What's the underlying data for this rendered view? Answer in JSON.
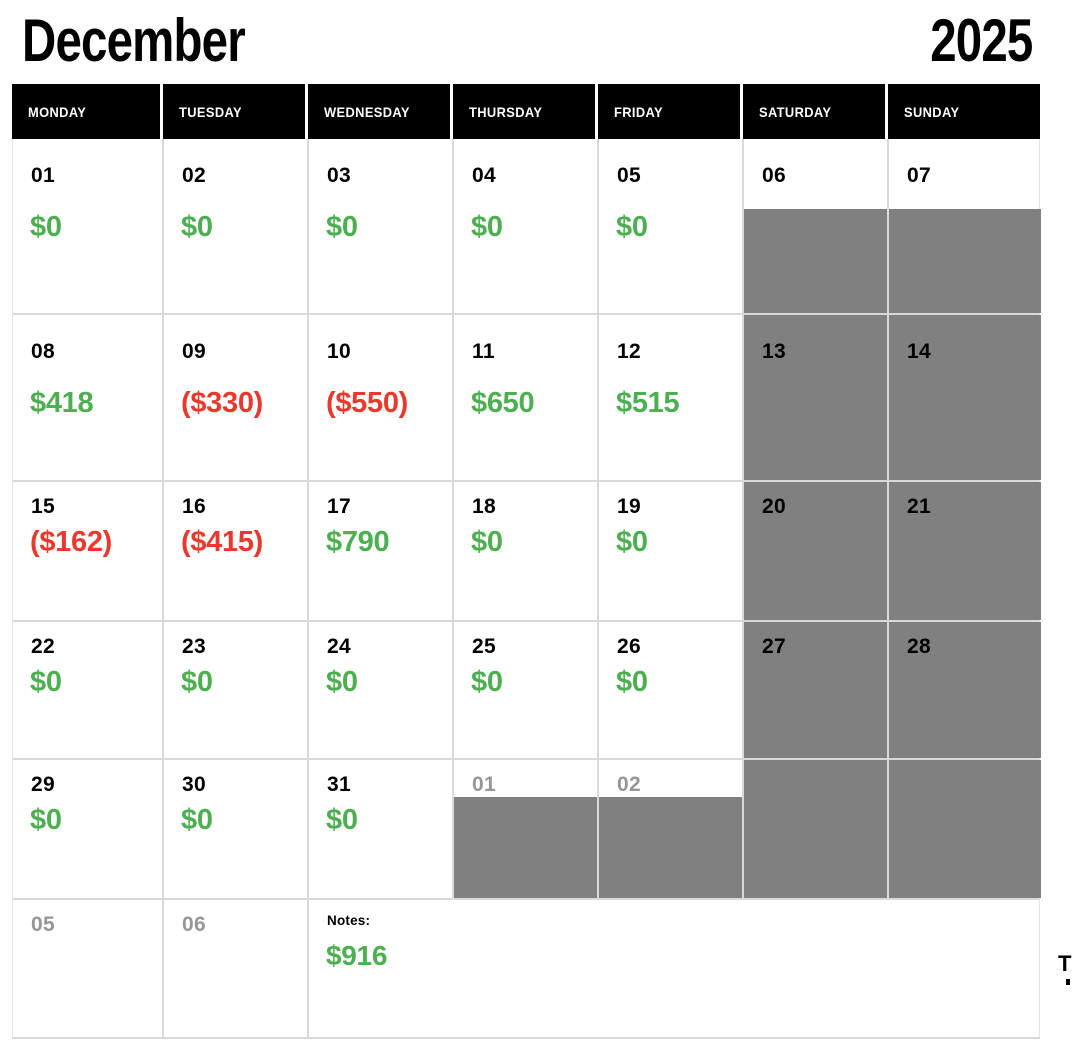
{
  "title": {
    "month": "December",
    "year": "2025"
  },
  "colors": {
    "positive_value": "#4caf50",
    "negative_value": "#ea392c",
    "weekend_fill": "#808080",
    "outside_month_date": "#969696",
    "header_bg": "#000000",
    "header_text": "#ffffff",
    "gridline": "#d9d9d9"
  },
  "calendar": {
    "day_headers": [
      "MONDAY",
      "TUESDAY",
      "WEDNESDAY",
      "THURSDAY",
      "FRIDAY",
      "SATURDAY",
      "SUNDAY"
    ],
    "weeks": [
      {
        "cells": [
          {
            "kind": "day",
            "date": "01",
            "value": "$0",
            "value_type": "positive"
          },
          {
            "kind": "day",
            "date": "02",
            "value": "$0",
            "value_type": "positive"
          },
          {
            "kind": "day",
            "date": "03",
            "value": "$0",
            "value_type": "positive"
          },
          {
            "kind": "day",
            "date": "04",
            "value": "$0",
            "value_type": "positive"
          },
          {
            "kind": "day",
            "date": "05",
            "value": "$0",
            "value_type": "positive"
          },
          {
            "kind": "weekend_split",
            "date": "06",
            "value": "",
            "value_type": ""
          },
          {
            "kind": "weekend_split",
            "date": "07",
            "value": "",
            "value_type": ""
          }
        ]
      },
      {
        "cells": [
          {
            "kind": "day",
            "date": "08",
            "value": "$418",
            "value_type": "positive"
          },
          {
            "kind": "day",
            "date": "09",
            "value": "($330)",
            "value_type": "negative"
          },
          {
            "kind": "day",
            "date": "10",
            "value": "($550)",
            "value_type": "negative"
          },
          {
            "kind": "day",
            "date": "11",
            "value": "$650",
            "value_type": "positive"
          },
          {
            "kind": "day",
            "date": "12",
            "value": "$515",
            "value_type": "positive"
          },
          {
            "kind": "weekend_full",
            "date": "13",
            "value": "",
            "value_type": ""
          },
          {
            "kind": "weekend_full",
            "date": "14",
            "value": "",
            "value_type": ""
          }
        ]
      },
      {
        "cells": [
          {
            "kind": "day",
            "date": "15",
            "value": "($162)",
            "value_type": "negative"
          },
          {
            "kind": "day",
            "date": "16",
            "value": "($415)",
            "value_type": "negative"
          },
          {
            "kind": "day",
            "date": "17",
            "value": "$790",
            "value_type": "positive"
          },
          {
            "kind": "day",
            "date": "18",
            "value": "$0",
            "value_type": "positive"
          },
          {
            "kind": "day",
            "date": "19",
            "value": "$0",
            "value_type": "positive"
          },
          {
            "kind": "weekend_full",
            "date": "20",
            "value": "",
            "value_type": ""
          },
          {
            "kind": "weekend_full",
            "date": "21",
            "value": "",
            "value_type": ""
          }
        ]
      },
      {
        "cells": [
          {
            "kind": "day",
            "date": "22",
            "value": "$0",
            "value_type": "positive"
          },
          {
            "kind": "day",
            "date": "23",
            "value": "$0",
            "value_type": "positive"
          },
          {
            "kind": "day",
            "date": "24",
            "value": "$0",
            "value_type": "positive"
          },
          {
            "kind": "day",
            "date": "25",
            "value": "$0",
            "value_type": "positive"
          },
          {
            "kind": "day",
            "date": "26",
            "value": "$0",
            "value_type": "positive"
          },
          {
            "kind": "weekend_full",
            "date": "27",
            "value": "",
            "value_type": ""
          },
          {
            "kind": "weekend_full",
            "date": "28",
            "value": "",
            "value_type": ""
          }
        ]
      },
      {
        "cells": [
          {
            "kind": "day",
            "date": "29",
            "value": "$0",
            "value_type": "positive"
          },
          {
            "kind": "day",
            "date": "30",
            "value": "$0",
            "value_type": "positive"
          },
          {
            "kind": "day",
            "date": "31",
            "value": "$0",
            "value_type": "positive"
          },
          {
            "kind": "outside_split",
            "date": "01",
            "value": "",
            "value_type": ""
          },
          {
            "kind": "outside_split",
            "date": "02",
            "value": "",
            "value_type": ""
          },
          {
            "kind": "weekend_full",
            "date": "",
            "value": "",
            "value_type": ""
          },
          {
            "kind": "weekend_full",
            "date": "",
            "value": "",
            "value_type": ""
          }
        ]
      },
      {
        "cells": [
          {
            "kind": "outside",
            "date": "05",
            "value": "",
            "value_type": ""
          },
          {
            "kind": "outside",
            "date": "06",
            "value": "",
            "value_type": ""
          },
          {
            "kind": "notes",
            "label": "Notes:",
            "value": "$916",
            "value_type": "positive"
          }
        ]
      }
    ]
  },
  "edge_clipped_text": "T"
}
